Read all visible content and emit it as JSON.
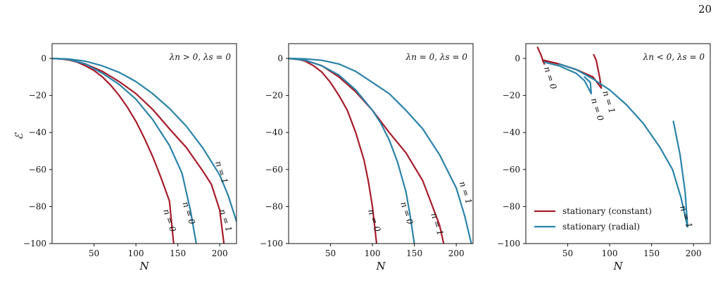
{
  "page": {
    "number": "20"
  },
  "colors": {
    "constant": "#a61c2a",
    "radial": "#2a83a8"
  },
  "chart_data": [
    {
      "type": "line",
      "annotation": "λn > 0,  λs = 0",
      "xlabel": "N",
      "ylabel": "ℰ",
      "xlim": [
        0,
        220
      ],
      "ylim": [
        -100,
        8
      ],
      "xticks": [
        "50",
        "100",
        "150",
        "200"
      ],
      "yticks": [
        "0",
        "−20",
        "−40",
        "−60",
        "−80",
        "−100"
      ],
      "series": [
        {
          "style": "constant",
          "label": "n = 0",
          "x": [
            0,
            10,
            20,
            30,
            40,
            50,
            60,
            70,
            80,
            90,
            100,
            110,
            120,
            130,
            140,
            145
          ],
          "y": [
            0,
            -0.2,
            -0.8,
            -2,
            -4,
            -6.5,
            -10,
            -14.5,
            -20,
            -26.5,
            -34,
            -43,
            -53,
            -64.5,
            -77,
            -100
          ]
        },
        {
          "style": "constant",
          "label": "n = 1",
          "x": [
            0,
            20,
            40,
            60,
            80,
            100,
            120,
            140,
            160,
            180,
            190,
            200,
            205
          ],
          "y": [
            0,
            -0.5,
            -3,
            -7,
            -12.5,
            -19,
            -27.5,
            -38,
            -48,
            -61,
            -68,
            -82,
            -100
          ]
        },
        {
          "style": "radial",
          "label": "n = 0",
          "x": [
            0,
            20,
            40,
            60,
            80,
            100,
            120,
            140,
            155,
            165,
            172
          ],
          "y": [
            0,
            -0.5,
            -3,
            -8,
            -14,
            -22,
            -33,
            -47,
            -62,
            -82,
            -100
          ]
        },
        {
          "style": "radial",
          "label": "n = 1",
          "x": [
            0,
            20,
            40,
            60,
            80,
            100,
            120,
            140,
            160,
            180,
            200,
            210,
            220
          ],
          "y": [
            0,
            -0.3,
            -1.5,
            -4,
            -7.5,
            -12.5,
            -19,
            -27,
            -36.5,
            -48.5,
            -63,
            -74,
            -88
          ]
        }
      ],
      "curve_labels": [
        {
          "text": "n = 0",
          "x": 137,
          "y": -88
        },
        {
          "text": "n = 0",
          "x": 160,
          "y": -84
        },
        {
          "text": "n = 1",
          "x": 204,
          "y": -88
        },
        {
          "text": "n = 1",
          "x": 199,
          "y": -62
        }
      ]
    },
    {
      "type": "line",
      "annotation": "λn = 0,  λs = 0",
      "xlabel": "N",
      "ylabel": "",
      "xlim": [
        0,
        220
      ],
      "ylim": [
        -100,
        8
      ],
      "xticks": [
        "50",
        "100",
        "150",
        "200"
      ],
      "yticks": [
        "0",
        "−20",
        "−40",
        "−60",
        "−80",
        "−100"
      ],
      "series": [
        {
          "style": "constant",
          "label": "n = 0",
          "x": [
            0,
            10,
            20,
            30,
            40,
            50,
            60,
            70,
            80,
            90,
            95,
            100,
            105
          ],
          "y": [
            0,
            -0.3,
            -1.5,
            -4,
            -7.5,
            -13,
            -20,
            -28,
            -40,
            -55,
            -66,
            -80,
            -100
          ]
        },
        {
          "style": "constant",
          "label": "n = 1",
          "x": [
            0,
            20,
            40,
            60,
            80,
            100,
            120,
            140,
            160,
            170,
            180,
            185
          ],
          "y": [
            0,
            -1,
            -4,
            -10,
            -18,
            -28,
            -40,
            -51,
            -66,
            -78,
            -90,
            -100
          ]
        },
        {
          "style": "radial",
          "label": "n = 0",
          "x": [
            0,
            20,
            40,
            60,
            80,
            100,
            110,
            120,
            130,
            140,
            145,
            150
          ],
          "y": [
            0,
            -1,
            -4,
            -9,
            -17,
            -28,
            -35,
            -44,
            -56,
            -72,
            -85,
            -100
          ]
        },
        {
          "style": "radial",
          "label": "n = 1",
          "x": [
            0,
            20,
            40,
            60,
            80,
            100,
            120,
            140,
            160,
            180,
            200,
            210,
            218
          ],
          "y": [
            0,
            -0.2,
            -1,
            -3,
            -7,
            -13,
            -19,
            -28,
            -38,
            -52,
            -70,
            -85,
            -100
          ]
        }
      ],
      "curve_labels": [
        {
          "text": "n = 0",
          "x": 99,
          "y": -88
        },
        {
          "text": "n = 0",
          "x": 138,
          "y": -84
        },
        {
          "text": "n = 1",
          "x": 174,
          "y": -90
        },
        {
          "text": "n = 1",
          "x": 208,
          "y": -73
        }
      ]
    },
    {
      "type": "line",
      "annotation": "λn < 0,  λs = 0",
      "xlabel": "N",
      "ylabel": "",
      "xlim": [
        0,
        220
      ],
      "ylim": [
        -100,
        8
      ],
      "xticks": [
        "50",
        "100",
        "150",
        "200"
      ],
      "yticks": [
        "0",
        "−20",
        "−40",
        "−60",
        "−80",
        "−100"
      ],
      "legend": {
        "position": "lower-left",
        "entries": [
          {
            "style": "constant",
            "label": "stationary (constant)"
          },
          {
            "style": "radial",
            "label": "stationary (radial)"
          }
        ]
      },
      "series": [
        {
          "style": "constant",
          "label": "n = 0",
          "x": [
            14,
            18,
            22,
            20,
            30,
            40
          ],
          "y": [
            6,
            2,
            -3,
            -1,
            -2,
            -3
          ]
        },
        {
          "style": "constant",
          "label": "n = 1",
          "x": [
            22,
            40,
            60,
            80,
            90,
            88,
            84,
            81
          ],
          "y": [
            -1,
            -3,
            -6,
            -10,
            -16,
            -10,
            -1,
            2
          ]
        },
        {
          "style": "radial",
          "label": "n = 0",
          "x": [
            22,
            40,
            60,
            70,
            78,
            77,
            70
          ],
          "y": [
            -2,
            -4,
            -8,
            -12,
            -19,
            -13,
            -10
          ]
        },
        {
          "style": "radial",
          "label": "n = 1",
          "x": [
            40,
            60,
            80,
            100,
            120,
            140,
            160,
            175,
            185,
            193,
            190,
            184,
            176
          ],
          "y": [
            -3,
            -6,
            -11,
            -17,
            -25,
            -35,
            -48,
            -60,
            -75,
            -91,
            -72,
            -52,
            -34
          ]
        }
      ],
      "curve_labels": [
        {
          "text": "n = 0",
          "x": 26,
          "y": -11
        },
        {
          "text": "n = 0",
          "x": 82,
          "y": -28
        },
        {
          "text": "n = 1",
          "x": 96,
          "y": -24
        },
        {
          "text": "n = 1",
          "x": 188,
          "y": -86
        }
      ]
    }
  ]
}
